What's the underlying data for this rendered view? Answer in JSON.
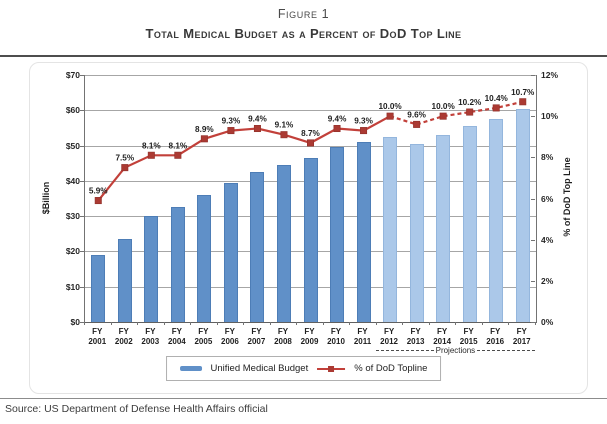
{
  "header": {
    "figure_label": "Figure 1",
    "title": "Total Medical Budget as a Percent of DoD Top Line"
  },
  "source": "Source: US Department of Defense Health Affairs official",
  "legend": {
    "bar_label": "Unified Medical Budget",
    "line_label": "% of DoD Topline"
  },
  "chart_data": {
    "type": "bar+line",
    "title": "Total Medical Budget as a Percent of DoD Top Line",
    "categories": [
      "FY 2001",
      "FY 2002",
      "FY 2003",
      "FY 2004",
      "FY 2005",
      "FY 2006",
      "FY 2007",
      "FY 2008",
      "FY 2009",
      "FY 2010",
      "FY 2011",
      "FY 2012",
      "FY 2013",
      "FY 2014",
      "FY 2015",
      "FY 2016",
      "FY 2017"
    ],
    "projections_label": "Projections",
    "projection_start_index": 11,
    "series": [
      {
        "name": "Unified Medical Budget",
        "type": "bar",
        "axis": "left",
        "unit": "$Billion",
        "values": [
          19,
          23.5,
          30,
          32.5,
          36,
          39.5,
          42.5,
          44.5,
          46.5,
          49.5,
          51,
          52.5,
          50.5,
          53,
          55.5,
          57.5,
          60.5
        ],
        "color_actual": "#6090c8",
        "border_actual": "#4d7db6",
        "color_projection": "#abc8e9",
        "border_projection": "#94b6dd"
      },
      {
        "name": "% of DoD Topline",
        "type": "line",
        "axis": "right",
        "values": [
          5.9,
          7.5,
          8.1,
          8.1,
          8.9,
          9.3,
          9.4,
          9.1,
          8.7,
          9.4,
          9.3,
          10.0,
          9.6,
          10.0,
          10.2,
          10.4,
          10.7
        ],
        "labels": [
          "5.9%",
          "7.5%",
          "8.1%",
          "8.1%",
          "8.9%",
          "9.3%",
          "9.4%",
          "9.1%",
          "8.7%",
          "9.4%",
          "9.3%",
          "10.0%",
          "9.6%",
          "10.0%",
          "10.2%",
          "10.4%",
          "10.7%"
        ],
        "color": "#c2403a",
        "marker_color": "#ab3a33",
        "dashed_from_index": 11
      }
    ],
    "left_axis": {
      "label": "$Billion",
      "min": 0,
      "max": 70,
      "step": 10,
      "ticks": [
        "$0",
        "$10",
        "$20",
        "$30",
        "$40",
        "$50",
        "$60",
        "$70"
      ]
    },
    "right_axis": {
      "label": "% of DoD Top Line",
      "min": 0,
      "max": 12,
      "step": 2,
      "ticks": [
        "0%",
        "2%",
        "4%",
        "6%",
        "8%",
        "10%",
        "12%"
      ]
    },
    "grid": "horizontal",
    "legend_position": "bottom"
  }
}
